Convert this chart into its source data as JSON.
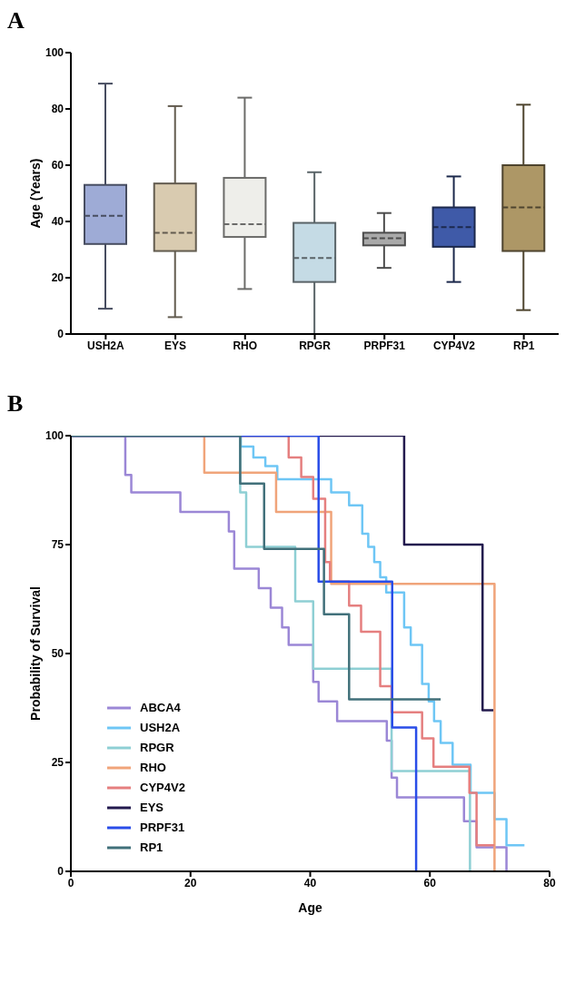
{
  "chart_data": [
    {
      "type": "box",
      "title": "A",
      "ylabel": "Age (Years)",
      "categories": [
        "USH2A",
        "EYS",
        "RHO",
        "RPGR",
        "PRPF31",
        "CYP4V2",
        "RP1"
      ],
      "colors": [
        "#9eabd6",
        "#d9cbb0",
        "#eeeeea",
        "#c5dbe5",
        "#a9a9a9",
        "#3f5aa8",
        "#ad9766"
      ],
      "boxes": [
        {
          "low": 9,
          "q1": 32,
          "median": 42,
          "q3": 53,
          "high": 89
        },
        {
          "low": 6,
          "q1": 29.5,
          "median": 36,
          "q3": 53.5,
          "high": 81
        },
        {
          "low": 16,
          "q1": 34.5,
          "median": 39,
          "q3": 55.5,
          "high": 84
        },
        {
          "low": 0,
          "q1": 18.5,
          "median": 27,
          "q3": 39.5,
          "high": 57.5
        },
        {
          "low": 23.5,
          "q1": 31.5,
          "median": 34,
          "q3": 36,
          "high": 43
        },
        {
          "low": 18.5,
          "q1": 31,
          "median": 38,
          "q3": 45,
          "high": 56
        },
        {
          "low": 8.5,
          "q1": 29.5,
          "median": 45,
          "q3": 60,
          "high": 81.5
        }
      ],
      "ylim": [
        0,
        100
      ],
      "yticks": [
        0,
        20,
        40,
        60,
        80,
        100
      ]
    },
    {
      "type": "step",
      "title": "B",
      "xlabel": "Age",
      "ylabel": "Probability of Survival",
      "xlim": [
        0,
        80
      ],
      "xticks": [
        0,
        20,
        40,
        60,
        80
      ],
      "ylim": [
        0,
        100
      ],
      "yticks": [
        0,
        25,
        50,
        75,
        100
      ],
      "legend": "bottom left",
      "series": [
        {
          "name": "ABCA4",
          "color": "#9b87d6",
          "x": [
            0,
            9.1,
            10.1,
            18.3,
            26.4,
            27.3,
            31.4,
            33.4,
            35.3,
            36.4,
            40.5,
            41.4,
            44.5,
            52.8,
            53.6,
            54.5,
            65.7,
            67.8,
            72.8
          ],
          "values": [
            100,
            91,
            87,
            82.5,
            78,
            69.5,
            65,
            60.5,
            56,
            52,
            43.5,
            39,
            34.5,
            30,
            21.5,
            17,
            11.5,
            5.5,
            0
          ]
        },
        {
          "name": "USH2A",
          "color": "#6ec6f5",
          "x": [
            0,
            28.4,
            30.5,
            32.5,
            34.5,
            43.5,
            46.5,
            48.7,
            49.7,
            50.7,
            51.7,
            52.7,
            55.7,
            56.8,
            58.7,
            59.8,
            60.7,
            61.8,
            63.8,
            66.8,
            70.8,
            72.8,
            75.8
          ],
          "values": [
            100,
            97.5,
            95,
            93,
            90,
            87,
            84,
            77.5,
            74.5,
            71,
            67.5,
            64,
            56,
            52,
            43,
            39,
            34.5,
            29.5,
            24.5,
            18,
            12,
            6,
            6
          ]
        },
        {
          "name": "RPGR",
          "color": "#8ecfd4",
          "x": [
            0,
            28.3,
            29.3,
            37.5,
            40.5,
            53.6,
            66.7
          ],
          "values": [
            100,
            87,
            74.5,
            62,
            46.5,
            23,
            0
          ]
        },
        {
          "name": "RHO",
          "color": "#f0a47a",
          "x": [
            0,
            22.3,
            34.3,
            43.5,
            70.8
          ],
          "values": [
            100,
            91.5,
            82.5,
            66,
            0
          ]
        },
        {
          "name": "CYP4V2",
          "color": "#e57f7f",
          "x": [
            0,
            36.4,
            38.5,
            40.5,
            42.5,
            43.3,
            46.5,
            48.5,
            51.7,
            53.6,
            58.7,
            60.6,
            66.6,
            67.8,
            70.8
          ],
          "values": [
            100,
            95,
            90.5,
            85.5,
            71,
            66.5,
            61,
            55,
            42.5,
            36.5,
            30.5,
            24,
            18,
            6,
            6
          ]
        },
        {
          "name": "EYS",
          "color": "#231a4e",
          "x": [
            0,
            55.7,
            68.8,
            70.6
          ],
          "values": [
            100,
            75,
            37,
            37
          ]
        },
        {
          "name": "PRPF31",
          "color": "#2a4de8",
          "x": [
            0,
            41.4,
            53.7,
            57.7
          ],
          "values": [
            100,
            66.5,
            33,
            0
          ]
        },
        {
          "name": "RP1",
          "color": "#41707a",
          "x": [
            0,
            28.3,
            32.3,
            42.3,
            46.5,
            61.8
          ],
          "values": [
            100,
            89,
            74,
            59,
            39.5,
            39.5
          ]
        }
      ]
    }
  ]
}
